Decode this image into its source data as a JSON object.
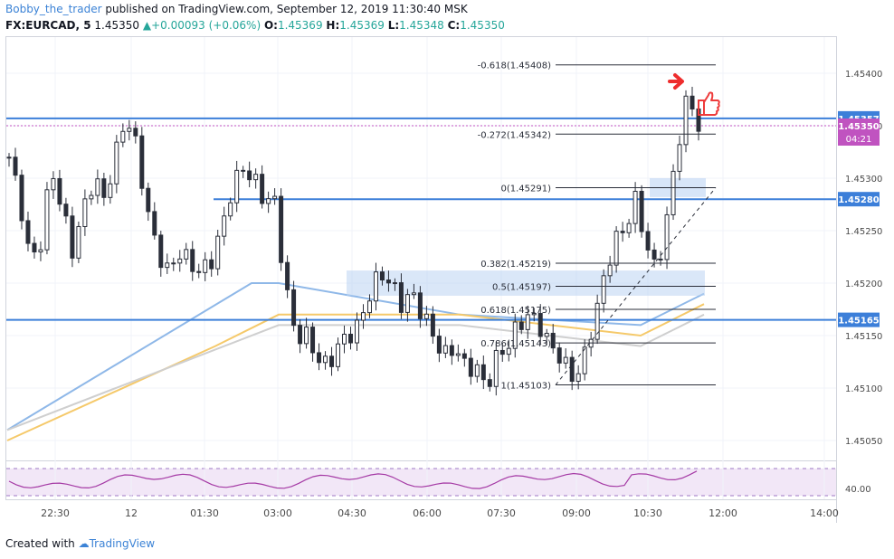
{
  "header": {
    "author": "Bobby_the_trader",
    "published": " published on TradingView.com, September 12, 2019 11:30:40 MSK",
    "symbol": "FX:EURCAD, 5",
    "last": "1.45350",
    "change_arrow": "▲",
    "change": "+0.00093 (+0.06%)",
    "o_label": "O:",
    "o_value": "1.45369",
    "h_label": "H:",
    "h_value": "1.45369",
    "l_label": "L:",
    "l_value": "1.45348",
    "c_label": "C:",
    "c_value": "1.45350"
  },
  "footer": {
    "prefix": "Created with",
    "brand": "TradingView"
  },
  "chart_data": {
    "type": "candlestick",
    "symbol": "FX:EURCAD",
    "interval": "5",
    "ylim": [
      1.4503,
      1.4543
    ],
    "price_ticks": [
      "1.45400",
      "1.45350",
      "1.45300",
      "1.45250",
      "1.45200",
      "1.45150",
      "1.45100",
      "1.45050"
    ],
    "time_ticks": [
      "22:30",
      "12",
      "01:30",
      "03:00",
      "04:30",
      "06:00",
      "07:30",
      "09:00",
      "10:30",
      "12:00",
      "14:00"
    ],
    "close_path": [
      1.4532,
      1.4528,
      1.4522,
      1.4524,
      1.4531,
      1.4527,
      1.4523,
      1.4527,
      1.453,
      1.4528,
      1.4532,
      1.4536,
      1.4533,
      1.4527,
      1.4523,
      1.4521,
      1.4523,
      1.4522,
      1.4521,
      1.4522,
      1.4525,
      1.4529,
      1.4531,
      1.453,
      1.4528,
      1.4528,
      1.452,
      1.4515,
      1.4515,
      1.4513,
      1.4512,
      1.4514,
      1.4515,
      1.4516,
      1.4519,
      1.4521,
      1.452,
      1.4518,
      1.4519,
      1.4517,
      1.4515,
      1.4513,
      1.4514,
      1.4512,
      1.4512,
      1.451,
      1.4513,
      1.4514,
      1.4516,
      1.4517,
      1.4516,
      1.4514,
      1.4513,
      1.4511,
      1.4512,
      1.4516,
      1.452,
      1.4524,
      1.4525,
      1.4528,
      1.4524,
      1.4521,
      1.4526,
      1.4533,
      1.4538,
      1.4535
    ],
    "close_x_range": [
      "22:00",
      "11:00"
    ],
    "moving_averages": [
      {
        "color": "#8fb8e8",
        "points": [
          [
            0,
            1.4506
          ],
          [
            270,
            1.452
          ],
          [
            300,
            1.452
          ],
          [
            500,
            1.4517
          ],
          [
            700,
            1.4516
          ],
          [
            770,
            1.4519
          ]
        ]
      },
      {
        "color": "#f5c96a",
        "points": [
          [
            0,
            1.4505
          ],
          [
            230,
            1.4514
          ],
          [
            300,
            1.4517
          ],
          [
            500,
            1.4517
          ],
          [
            700,
            1.4515
          ],
          [
            770,
            1.4518
          ]
        ]
      },
      {
        "color": "#cfcfcf",
        "points": [
          [
            0,
            1.4506
          ],
          [
            240,
            1.4514
          ],
          [
            300,
            1.4516
          ],
          [
            500,
            1.4516
          ],
          [
            700,
            1.4514
          ],
          [
            770,
            1.4517
          ]
        ]
      }
    ],
    "fibonacci": [
      {
        "label": "-0.618(1.45408)",
        "value": 1.45408
      },
      {
        "label": "-0.272(1.45342)",
        "value": 1.45342
      },
      {
        "label": "0(1.45291)",
        "value": 1.45291
      },
      {
        "label": "0.382(1.45219)",
        "value": 1.45219
      },
      {
        "label": "0.5(1.45197)",
        "value": 1.45197
      },
      {
        "label": "0.618(1.45175)",
        "value": 1.45175
      },
      {
        "label": "0.786(1.45143)",
        "value": 1.45143
      },
      {
        "label": "1(1.45103)",
        "value": 1.45103
      }
    ],
    "horizontal_levels": [
      {
        "label": "1.45357",
        "value": 1.45357,
        "color": "#3c7fd9"
      },
      {
        "label": "1.45280",
        "value": 1.4528,
        "color": "#3c7fd9"
      },
      {
        "label": "1.45165",
        "value": 1.45165,
        "color": "#3c7fd9"
      }
    ],
    "current_price": {
      "label": "1.45350",
      "value": 1.4535,
      "countdown": "04:21",
      "color": "#c053c0"
    },
    "rsi": {
      "level_label": "40.00",
      "level_value": 40
    }
  }
}
